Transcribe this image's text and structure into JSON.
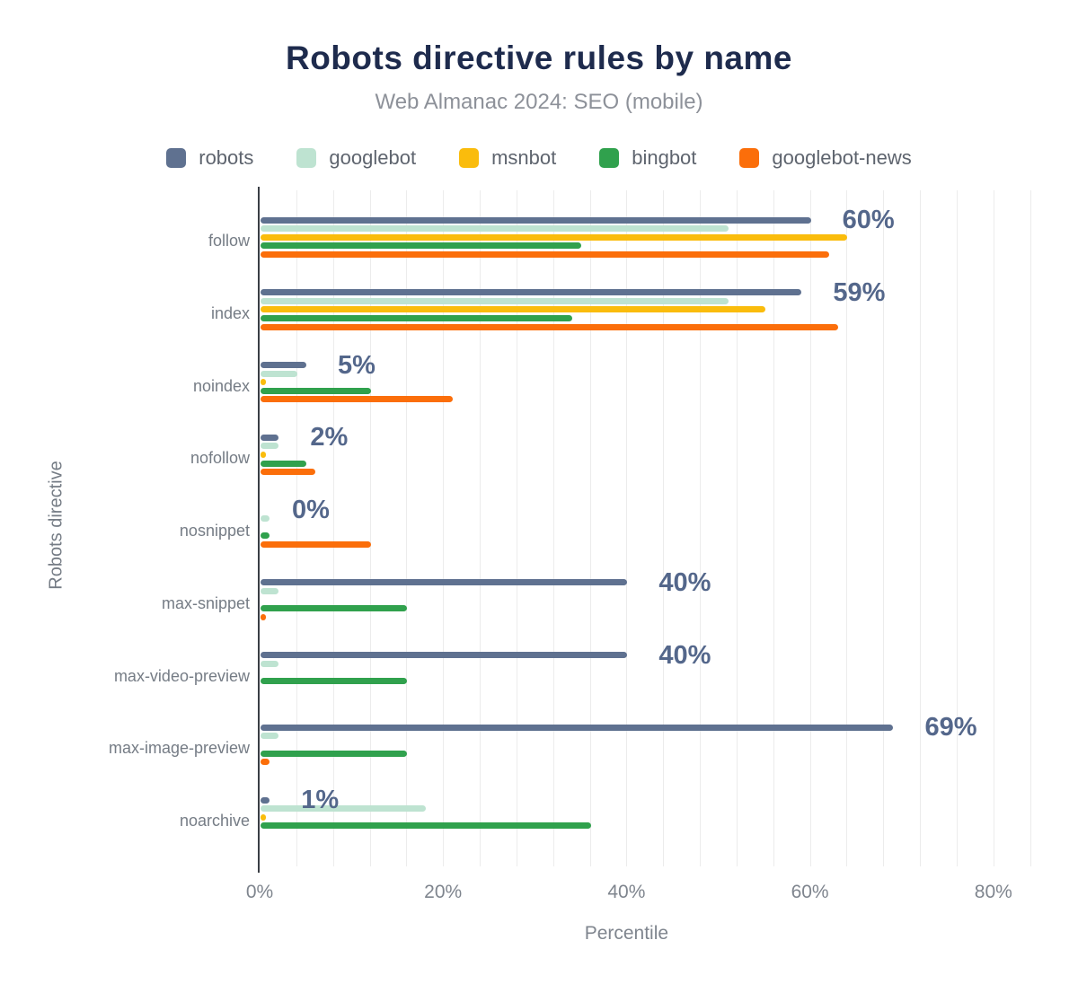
{
  "title": "Robots directive rules by name",
  "subtitle": "Web Almanac 2024: SEO (mobile)",
  "chart_data": {
    "type": "bar",
    "orientation": "horizontal",
    "title": "Robots directive rules by name",
    "subtitle": "Web Almanac 2024: SEO (mobile)",
    "xlabel": "Percentile",
    "ylabel": "Robots directive",
    "x_ticks": [
      "0%",
      "20%",
      "40%",
      "60%",
      "80%"
    ],
    "x_tick_values": [
      0,
      20,
      40,
      60,
      80
    ],
    "xlim": [
      0,
      85
    ],
    "gridline_step_pct": 4,
    "grid": true,
    "legend_position": "top",
    "categories": [
      "follow",
      "index",
      "noindex",
      "nofollow",
      "nosnippet",
      "max-snippet",
      "max-video-preview",
      "max-image-preview",
      "noarchive"
    ],
    "series": [
      {
        "name": "robots",
        "color": "#5f7190",
        "values": [
          60,
          59,
          5,
          2,
          null,
          40,
          40,
          69,
          1
        ]
      },
      {
        "name": "googlebot",
        "color": "#bee3d1",
        "values": [
          51,
          51,
          4,
          2,
          1,
          2,
          2,
          2,
          18
        ]
      },
      {
        "name": "msnbot",
        "color": "#fabc0c",
        "values": [
          64,
          55,
          0,
          0,
          null,
          null,
          null,
          null,
          0
        ]
      },
      {
        "name": "bingbot",
        "color": "#30a14d",
        "values": [
          35,
          34,
          12,
          5,
          1,
          16,
          16,
          16,
          36
        ]
      },
      {
        "name": "googlebot-news",
        "color": "#fb6e0a",
        "values": [
          62,
          63,
          21,
          6,
          12,
          0,
          null,
          1,
          null
        ]
      }
    ],
    "robots_value_labels": [
      "60%",
      "59%",
      "5%",
      "2%",
      "0%",
      "40%",
      "40%",
      "69%",
      "1%"
    ]
  },
  "colors": {
    "title": "#1e2b4d",
    "subtitle": "#8d9199",
    "value_label": "#54678b",
    "axis_line": "#3a3e45",
    "gridline": "#ececec",
    "tick_text": "#7f858e"
  }
}
